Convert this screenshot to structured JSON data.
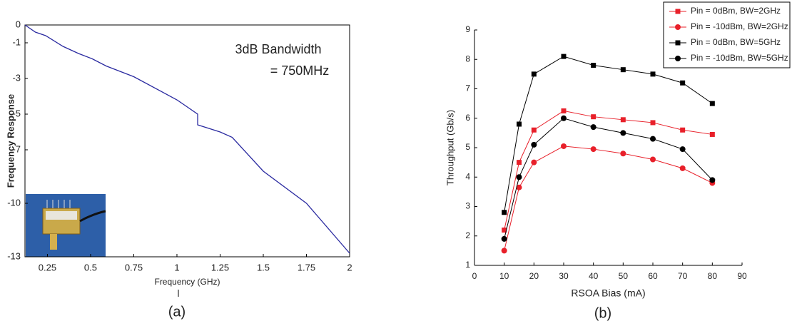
{
  "chart_data": [
    {
      "type": "line",
      "caption": "(a)",
      "xlabel": "Frequency (GHz)",
      "ylabel": "Frequency Response",
      "annotations": [
        "3dB Bandwidth",
        "= 750MHz"
      ],
      "x": [
        0.12,
        0.18,
        0.24,
        0.34,
        0.43,
        0.51,
        0.59,
        0.75,
        1.0,
        1.12,
        1.12,
        1.25,
        1.32,
        1.5,
        1.75,
        2.0
      ],
      "values": [
        0,
        -0.4,
        -0.6,
        -1.2,
        -1.6,
        -1.9,
        -2.3,
        -2.9,
        -4.2,
        -5.0,
        -5.6,
        -6.0,
        -6.3,
        -8.2,
        -10.0,
        -12.8
      ],
      "color": "#2a2aa0",
      "xlim": [
        0.12,
        2
      ],
      "xticks": [
        0.25,
        0.5,
        0.75,
        1,
        1.25,
        1.5,
        1.75,
        2
      ],
      "ylim": [
        -13,
        0
      ],
      "yticks": [
        0,
        -1,
        -3,
        -5,
        -7,
        -10,
        -13
      ]
    },
    {
      "type": "line",
      "caption": "(b)",
      "xlabel": "RSOA Bias (mA)",
      "ylabel": "Throughput (Gb/s)",
      "x": [
        10,
        15,
        20,
        30,
        40,
        50,
        60,
        70,
        80
      ],
      "series": [
        {
          "name": "Pin = 0dBm, BW=2GHz",
          "color": "#e8202a",
          "marker": "square",
          "values": [
            2.2,
            4.5,
            5.6,
            6.25,
            6.05,
            5.95,
            5.85,
            5.6,
            5.45
          ]
        },
        {
          "name": "Pin = -10dBm, BW=2GHz",
          "color": "#e8202a",
          "marker": "circle",
          "values": [
            1.5,
            3.65,
            4.5,
            5.05,
            4.95,
            4.8,
            4.6,
            4.3,
            3.8
          ]
        },
        {
          "name": "Pin = 0dBm, BW=5GHz",
          "color": "#000000",
          "marker": "square",
          "values": [
            2.8,
            5.8,
            7.5,
            8.1,
            7.8,
            7.65,
            7.5,
            7.2,
            6.5
          ]
        },
        {
          "name": "Pin = -10dBm, BW=5GHz",
          "color": "#000000",
          "marker": "circle",
          "values": [
            1.9,
            4.0,
            5.1,
            6.0,
            5.7,
            5.5,
            5.3,
            4.95,
            3.9
          ]
        }
      ],
      "xlim": [
        0,
        90
      ],
      "xticks": [
        0,
        10,
        20,
        30,
        40,
        50,
        60,
        70,
        80,
        90
      ],
      "ylim": [
        1,
        9
      ],
      "yticks": [
        1,
        2,
        3,
        4,
        5,
        6,
        7,
        8,
        9
      ]
    }
  ]
}
